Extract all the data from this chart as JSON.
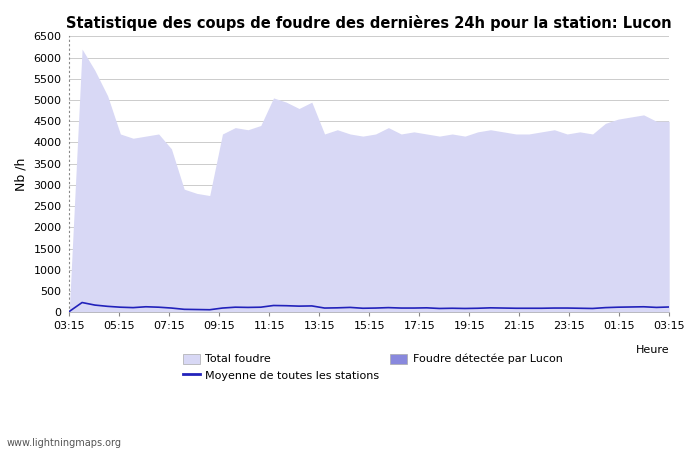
{
  "title": "Statistique des coups de foudre des dernières 24h pour la station: Lucon",
  "ylabel": "Nb /h",
  "xlabel": "Heure",
  "watermark": "www.lightningmaps.org",
  "xtick_labels": [
    "03:15",
    "05:15",
    "07:15",
    "09:15",
    "11:15",
    "13:15",
    "15:15",
    "17:15",
    "19:15",
    "21:15",
    "23:15",
    "01:15",
    "03:15"
  ],
  "ylim": [
    0,
    6500
  ],
  "yticks": [
    0,
    500,
    1000,
    1500,
    2000,
    2500,
    3000,
    3500,
    4000,
    4500,
    5000,
    5500,
    6000,
    6500
  ],
  "bg_color": "#ffffff",
  "plot_bg_color": "#ffffff",
  "grid_color": "#cccccc",
  "total_foudre_color": "#d8d8f5",
  "foudre_lucon_color": "#8888dd",
  "moyenne_color": "#2222bb",
  "total_foudre_values": [
    50,
    6200,
    5700,
    5100,
    4200,
    4100,
    4150,
    4200,
    3850,
    2900,
    2800,
    2750,
    4200,
    4350,
    4300,
    4400,
    5050,
    4950,
    4800,
    4950,
    4200,
    4300,
    4200,
    4150,
    4200,
    4350,
    4200,
    4250,
    4200,
    4150,
    4200,
    4150,
    4250,
    4300,
    4250,
    4200,
    4200,
    4250,
    4300,
    4200,
    4250,
    4200,
    4450,
    4550,
    4600,
    4650,
    4500,
    4500
  ],
  "foudre_lucon_values": [
    10,
    10,
    10,
    10,
    10,
    10,
    10,
    10,
    10,
    10,
    10,
    10,
    10,
    10,
    10,
    10,
    10,
    10,
    10,
    10,
    10,
    10,
    10,
    10,
    10,
    10,
    10,
    10,
    10,
    10,
    10,
    10,
    10,
    10,
    10,
    10,
    10,
    10,
    10,
    10,
    10,
    10,
    10,
    10,
    10,
    10,
    10,
    10
  ],
  "moyenne_values": [
    20,
    230,
    170,
    140,
    120,
    110,
    130,
    120,
    100,
    70,
    65,
    60,
    100,
    120,
    115,
    120,
    160,
    155,
    145,
    150,
    100,
    105,
    115,
    95,
    100,
    110,
    100,
    100,
    105,
    90,
    95,
    90,
    95,
    105,
    100,
    95,
    95,
    95,
    100,
    100,
    95,
    90,
    110,
    120,
    125,
    130,
    115,
    125
  ]
}
